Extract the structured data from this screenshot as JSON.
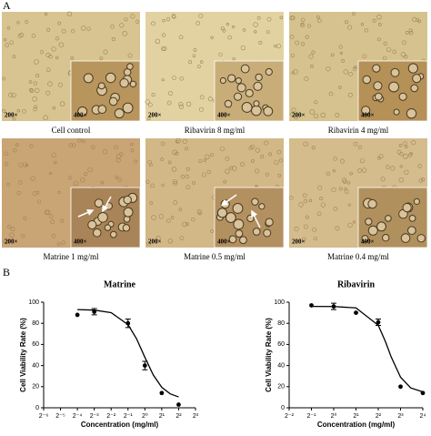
{
  "panel_a": {
    "label": "A",
    "images": [
      {
        "caption": "Cell control",
        "low_mag": "200×",
        "high_mag": "400×"
      },
      {
        "caption": "Ribavirin  8 mg/ml",
        "low_mag": "200×",
        "high_mag": "400×"
      },
      {
        "caption": "Ribavirin  4 mg/ml",
        "low_mag": "200×",
        "high_mag": "400×"
      },
      {
        "caption": "Matrine   1 mg/ml",
        "low_mag": "200×",
        "high_mag": "400×"
      },
      {
        "caption": "Matrine   0.5 mg/ml",
        "low_mag": "200×",
        "high_mag": "400×"
      },
      {
        "caption": "Matrine   0.4 mg/ml",
        "low_mag": "200×",
        "high_mag": "400×"
      }
    ]
  },
  "panel_b": {
    "label": "B"
  },
  "chart_data": [
    {
      "type": "scatter",
      "title": "Matrine",
      "x_label": "Concentration (mg/ml)",
      "y_label": "Cell Viability Rate (%)",
      "xscale": "log2",
      "xlim": [
        0.015625,
        8
      ],
      "xticks": [
        {
          "value": 0.015625,
          "label": "2⁻⁶"
        },
        {
          "value": 0.03125,
          "label": "2⁻⁵"
        },
        {
          "value": 0.0625,
          "label": "2⁻⁴"
        },
        {
          "value": 0.125,
          "label": "2⁻³"
        },
        {
          "value": 0.25,
          "label": "2⁻²"
        },
        {
          "value": 0.5,
          "label": "2⁻¹"
        },
        {
          "value": 1,
          "label": "2⁰"
        },
        {
          "value": 2,
          "label": "2¹"
        },
        {
          "value": 4,
          "label": "2²"
        },
        {
          "value": 8,
          "label": "2³"
        }
      ],
      "ylim": [
        0,
        100
      ],
      "yticks": [
        0,
        20,
        40,
        60,
        80,
        100
      ],
      "color": "#000000",
      "x": [
        0.0625,
        0.125,
        0.5,
        1,
        2,
        4
      ],
      "values": [
        88,
        91,
        80,
        40,
        14,
        3
      ],
      "errors": [
        null,
        3,
        4,
        4,
        null,
        null
      ],
      "fit": {
        "x": [
          0.0625,
          0.125,
          0.25,
          0.5,
          0.71,
          1,
          1.41,
          2,
          2.83,
          4
        ],
        "values": [
          93,
          92.5,
          90.1,
          78.8,
          65.4,
          47.8,
          31.1,
          19.4,
          13.2,
          10.3
        ]
      }
    },
    {
      "type": "scatter",
      "title": "Ribavirin",
      "x_label": "Concentration (mg/ml)",
      "y_label": "Cell Viability Rate (%)",
      "xscale": "log2",
      "xlim": [
        0.25,
        16
      ],
      "xticks": [
        {
          "value": 0.25,
          "label": "2⁻²"
        },
        {
          "value": 0.5,
          "label": "2⁻¹"
        },
        {
          "value": 1,
          "label": "2⁰"
        },
        {
          "value": 2,
          "label": "2¹"
        },
        {
          "value": 4,
          "label": "2²"
        },
        {
          "value": 8,
          "label": "2³"
        },
        {
          "value": 16,
          "label": "2⁴"
        }
      ],
      "ylim": [
        0,
        100
      ],
      "yticks": [
        0,
        20,
        40,
        60,
        80,
        100
      ],
      "color": "#000000",
      "x": [
        0.5,
        1,
        2,
        4,
        8,
        16
      ],
      "values": [
        97,
        96,
        90,
        81,
        20,
        14
      ],
      "errors": [
        null,
        3,
        null,
        3,
        null,
        null
      ],
      "fit": {
        "x": [
          0.5,
          1,
          2,
          4,
          5,
          6,
          8,
          11,
          16
        ],
        "values": [
          96,
          95.9,
          94.6,
          78.1,
          62.7,
          47.9,
          29.0,
          18.8,
          15.1
        ]
      }
    }
  ]
}
